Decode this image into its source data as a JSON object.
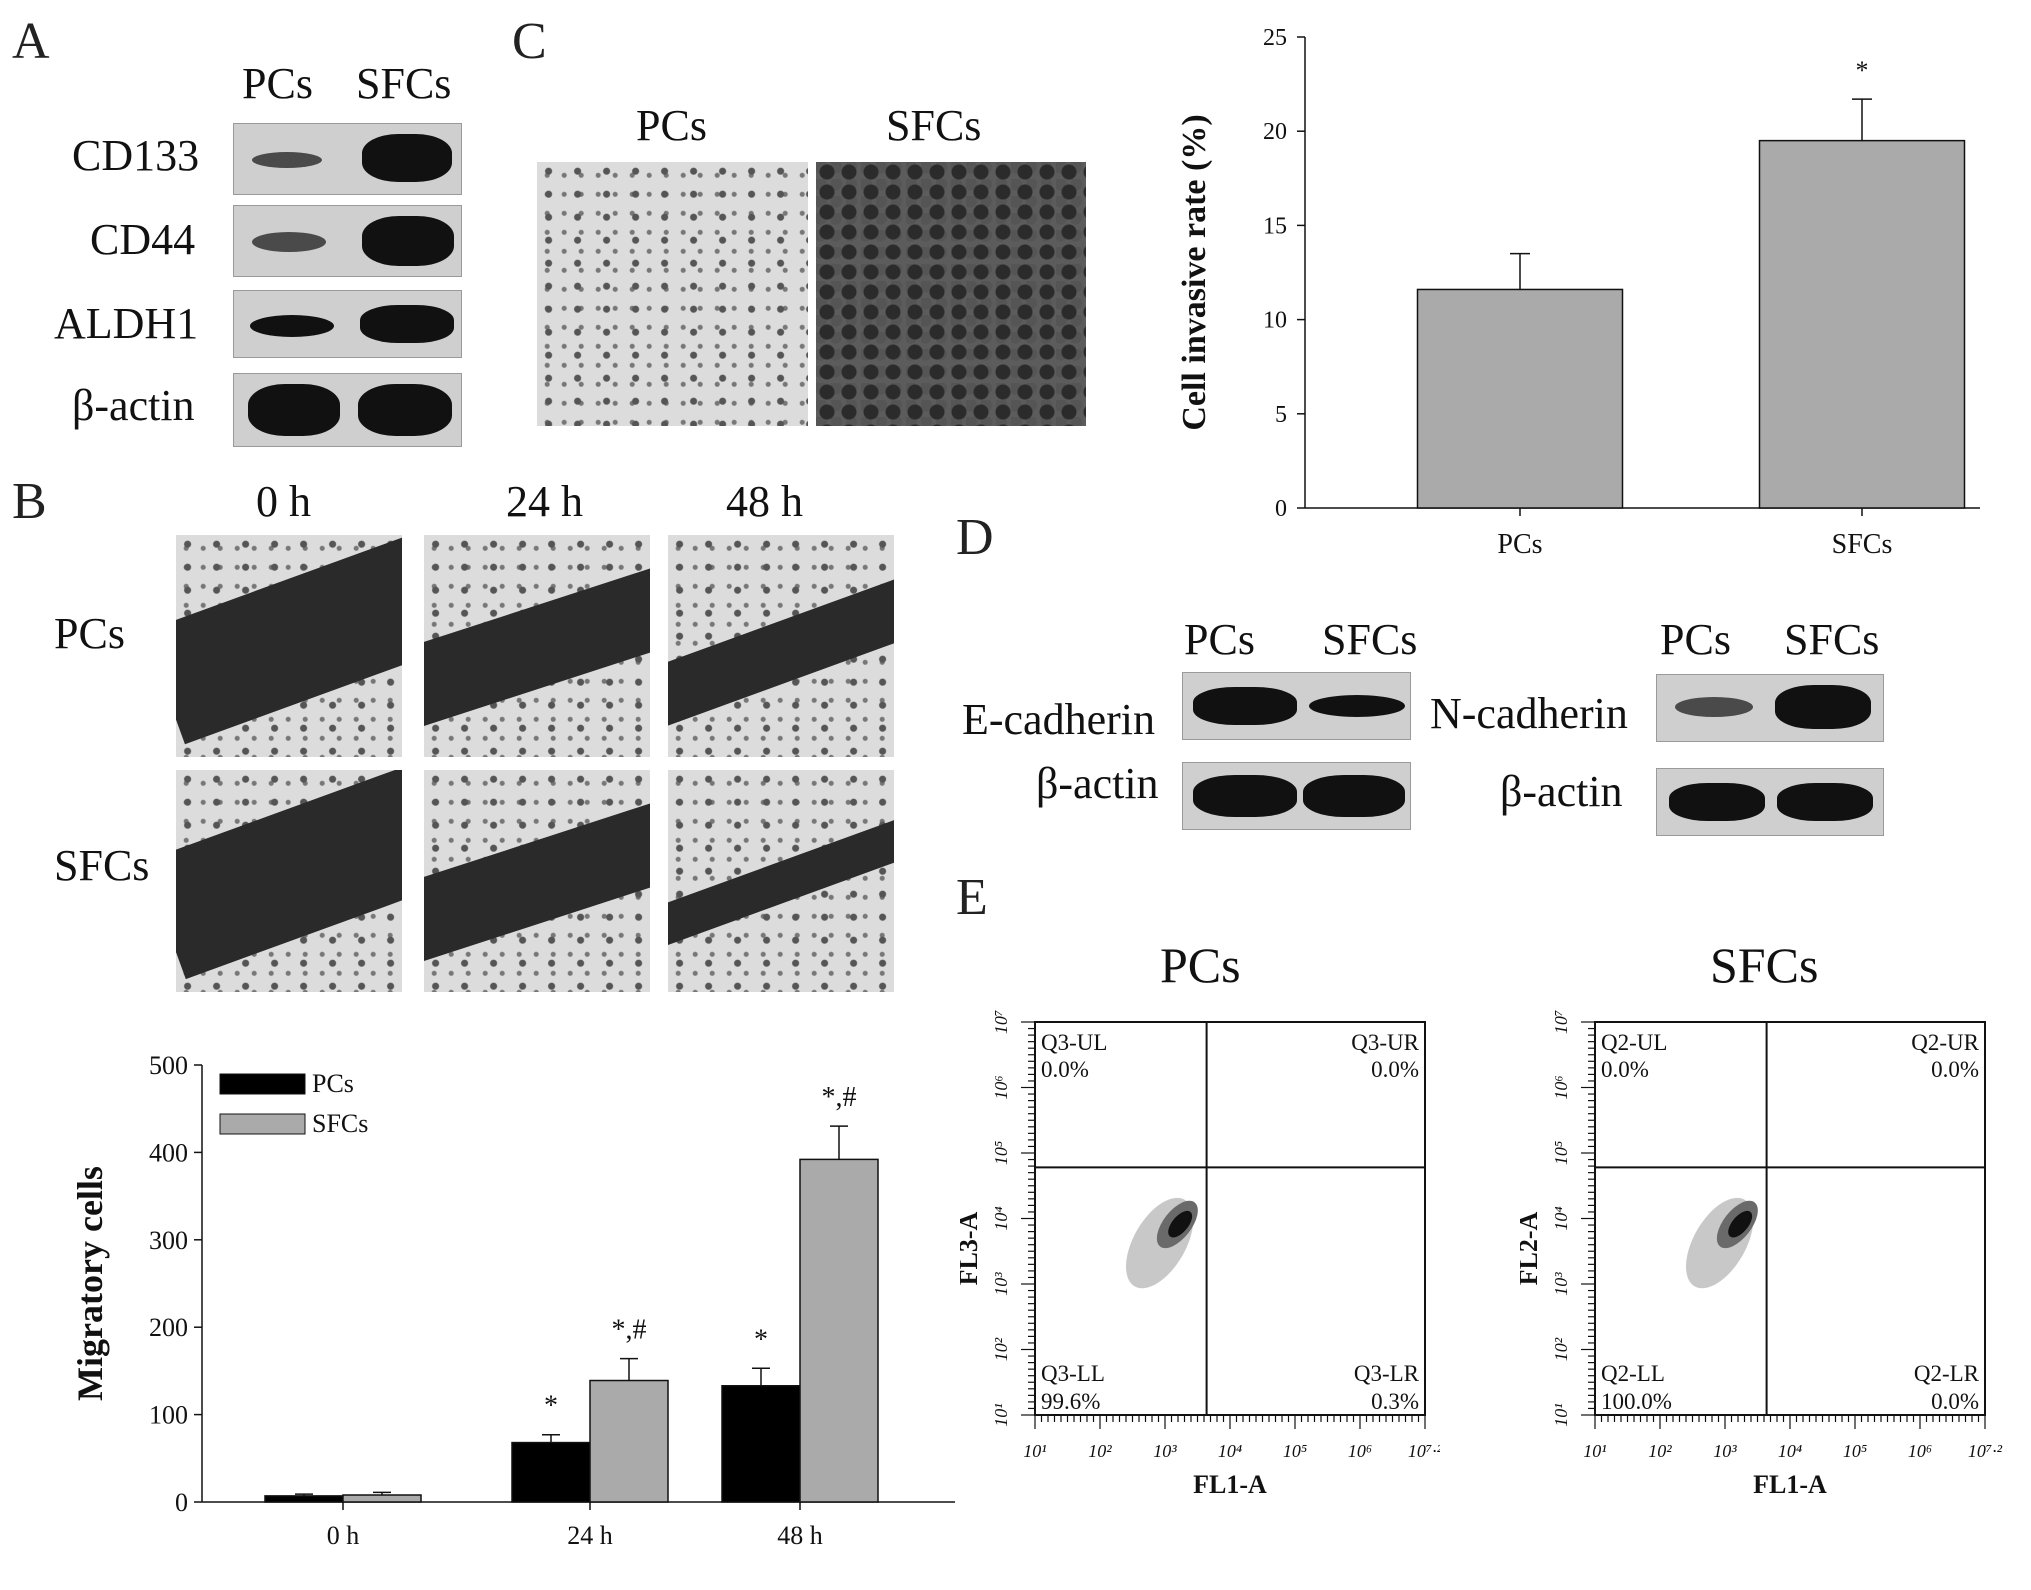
{
  "panels": {
    "A": {
      "letter": "A",
      "col_labels": [
        "PCs",
        "SFCs"
      ],
      "rows": [
        {
          "label": "CD133"
        },
        {
          "label": "CD44"
        },
        {
          "label": "ALDH1"
        },
        {
          "label": "β-actin"
        }
      ]
    },
    "B": {
      "letter": "B",
      "time_labels": [
        "0  h",
        "24  h",
        "48  h"
      ],
      "row_labels": [
        "PCs",
        "SFCs"
      ]
    },
    "C": {
      "letter": "C",
      "image_labels": [
        "PCs",
        "SFCs"
      ]
    },
    "D": {
      "letter": "D",
      "left": {
        "cols": [
          "PCs",
          "SFCs"
        ],
        "rows": [
          "E-cadherin",
          "β-actin"
        ]
      },
      "right": {
        "cols": [
          "PCs",
          "SFCs"
        ],
        "rows": [
          "N-cadherin",
          "β-actin"
        ]
      }
    },
    "E": {
      "letter": "E",
      "plots": [
        {
          "title": "PCs",
          "ylabel": "FL3-A",
          "xlabel": "FL1-A",
          "quadrants": {
            "ul": "Q3-UL",
            "ul_val": "0.0%",
            "ur": "Q3-UR",
            "ur_val": "0.0%",
            "ll": "Q3-LL",
            "ll_val": "99.6%",
            "lr": "Q3-LR",
            "lr_val": "0.3%"
          }
        },
        {
          "title": "SFCs",
          "ylabel": "FL2-A",
          "xlabel": "FL1-A",
          "quadrants": {
            "ul": "Q2-UL",
            "ul_val": "0.0%",
            "ur": "Q2-UR",
            "ur_val": "0.0%",
            "ll": "Q2-LL",
            "ll_val": "100.0%",
            "lr": "Q2-LR",
            "lr_val": "0.0%"
          }
        }
      ],
      "axis_ticks": [
        "10¹",
        "10²",
        "10³",
        "10⁴",
        "10⁵",
        "10⁶",
        "10⁷·²"
      ],
      "y_ticks": [
        "10¹",
        "10²",
        "10³",
        "10⁴",
        "10⁵",
        "10⁶",
        "10⁷"
      ]
    }
  },
  "chart_data": [
    {
      "type": "bar",
      "ylabel": "Cell invasive rate (%)",
      "categories": [
        "PCs",
        "SFCs"
      ],
      "values": [
        11.6,
        19.5
      ],
      "errors": [
        1.9,
        2.2
      ],
      "annotations": [
        "",
        "*"
      ],
      "ylim": [
        0,
        25
      ],
      "yticks": [
        0,
        5,
        10,
        15,
        20,
        25
      ],
      "colors": [
        "#aaaaaa"
      ]
    },
    {
      "type": "bar",
      "ylabel": "Migratory cells",
      "categories": [
        "0 h",
        "24 h",
        "48 h"
      ],
      "series": [
        {
          "name": "PCs",
          "values": [
            7,
            68,
            133
          ],
          "errors": [
            2,
            9,
            20
          ],
          "annotations": [
            "",
            "*",
            "*"
          ],
          "color": "#000000"
        },
        {
          "name": "SFCs",
          "values": [
            8,
            139,
            392
          ],
          "errors": [
            3,
            25,
            38
          ],
          "annotations": [
            "",
            "*,#",
            "*,#"
          ],
          "color": "#aaaaaa"
        }
      ],
      "ylim": [
        0,
        500
      ],
      "yticks": [
        0,
        100,
        200,
        300,
        400,
        500
      ],
      "legend": "top-left"
    }
  ]
}
